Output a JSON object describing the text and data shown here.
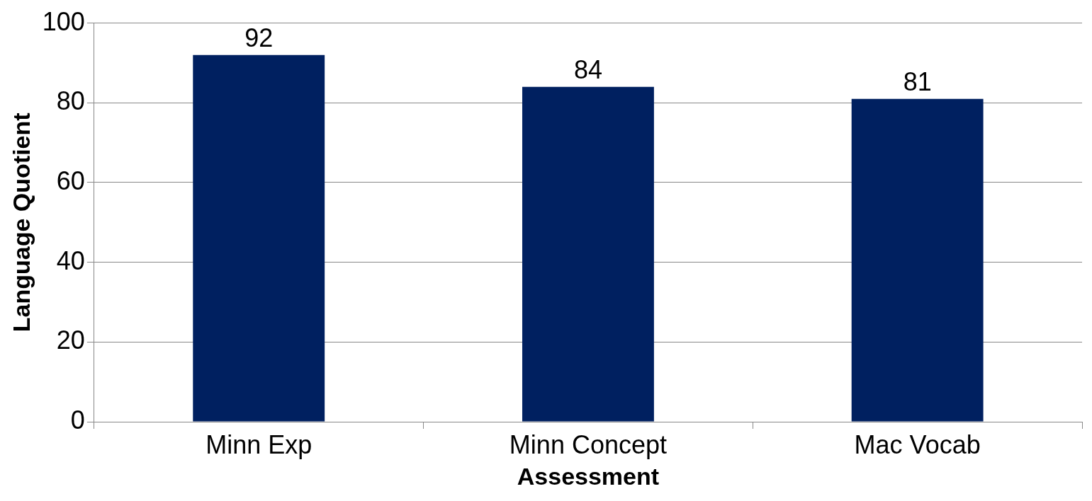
{
  "chart_data": {
    "type": "bar",
    "xlabel": "Assessment",
    "ylabel": "Language Quotient",
    "categories": [
      "Minn Exp",
      "Minn Concept",
      "Mac Vocab"
    ],
    "values": [
      92,
      84,
      81
    ],
    "color": "#002060",
    "ylim": [
      0,
      100
    ],
    "yticks": [
      0,
      20,
      40,
      60,
      80,
      100
    ],
    "grid": "y",
    "data_labels": true,
    "legend": false
  }
}
